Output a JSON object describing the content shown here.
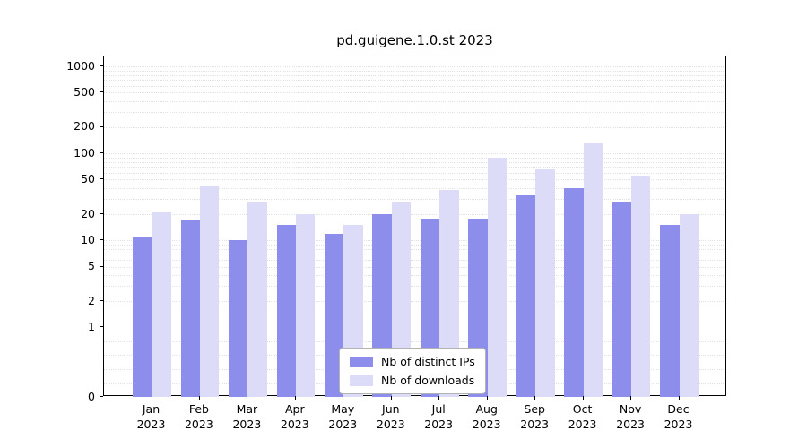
{
  "title": "pd.guigene.1.0.st 2023",
  "chart_data": {
    "type": "bar",
    "title": "pd.guigene.1.0.st 2023",
    "categories": [
      "Jan 2023",
      "Feb 2023",
      "Mar 2023",
      "Apr 2023",
      "May 2023",
      "Jun 2023",
      "Jul 2023",
      "Aug 2023",
      "Sep 2023",
      "Oct 2023",
      "Nov 2023",
      "Dec 2023"
    ],
    "x_tick_lines": [
      [
        "Jan",
        "2023"
      ],
      [
        "Feb",
        "2023"
      ],
      [
        "Mar",
        "2023"
      ],
      [
        "Apr",
        "2023"
      ],
      [
        "May",
        "2023"
      ],
      [
        "Jun",
        "2023"
      ],
      [
        "Jul",
        "2023"
      ],
      [
        "Aug",
        "2023"
      ],
      [
        "Sep",
        "2023"
      ],
      [
        "Oct",
        "2023"
      ],
      [
        "Nov",
        "2023"
      ],
      [
        "Dec",
        "2023"
      ]
    ],
    "series": [
      {
        "name": "Nb of distinct IPs",
        "color": "#8d8dec",
        "values": [
          11,
          17,
          10,
          15,
          12,
          20,
          18,
          18,
          33,
          40,
          27,
          15
        ]
      },
      {
        "name": "Nb of downloads",
        "color": "#dcdcf9",
        "values": [
          21,
          42,
          27,
          20,
          15,
          27,
          38,
          90,
          65,
          130,
          55,
          20
        ]
      }
    ],
    "xlabel": "",
    "ylabel": "",
    "yscale": "symlog",
    "linthresh": 1,
    "linscale": 0.8,
    "y_ticks": [
      0,
      1,
      2,
      5,
      10,
      20,
      50,
      100,
      200,
      500,
      1000
    ],
    "ylim": [
      0,
      1300
    ],
    "grid": "horizontal-dotted-minor",
    "legend_position": "lower center"
  }
}
